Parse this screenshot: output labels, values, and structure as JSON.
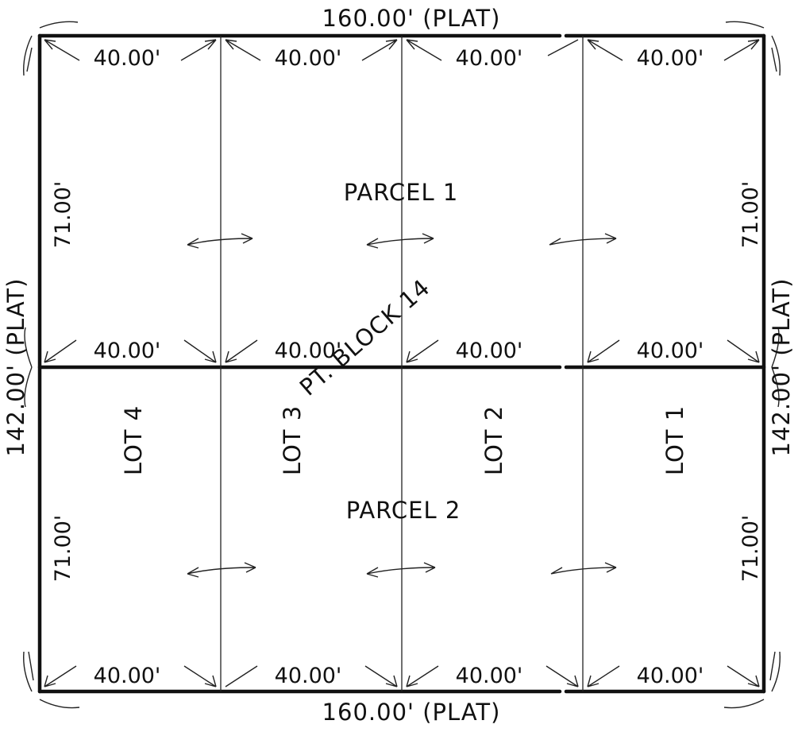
{
  "plat": {
    "top_dimension": "160.00' (PLAT)",
    "bottom_dimension": "160.00' (PLAT)",
    "left_dimension": "142.00' (PLAT)",
    "right_dimension": "142.00' (PLAT)",
    "segment_width": "40.00'",
    "segment_height": "71.00'",
    "block_label": "PT. BLOCK 14",
    "parcels": [
      {
        "label": "PARCEL 1"
      },
      {
        "label": "PARCEL 2"
      }
    ],
    "lots": [
      {
        "label": "LOT 4"
      },
      {
        "label": "LOT 3"
      },
      {
        "label": "LOT 2"
      },
      {
        "label": "LOT 1"
      }
    ],
    "line_color": "#111111",
    "background_color": "#ffffff"
  }
}
